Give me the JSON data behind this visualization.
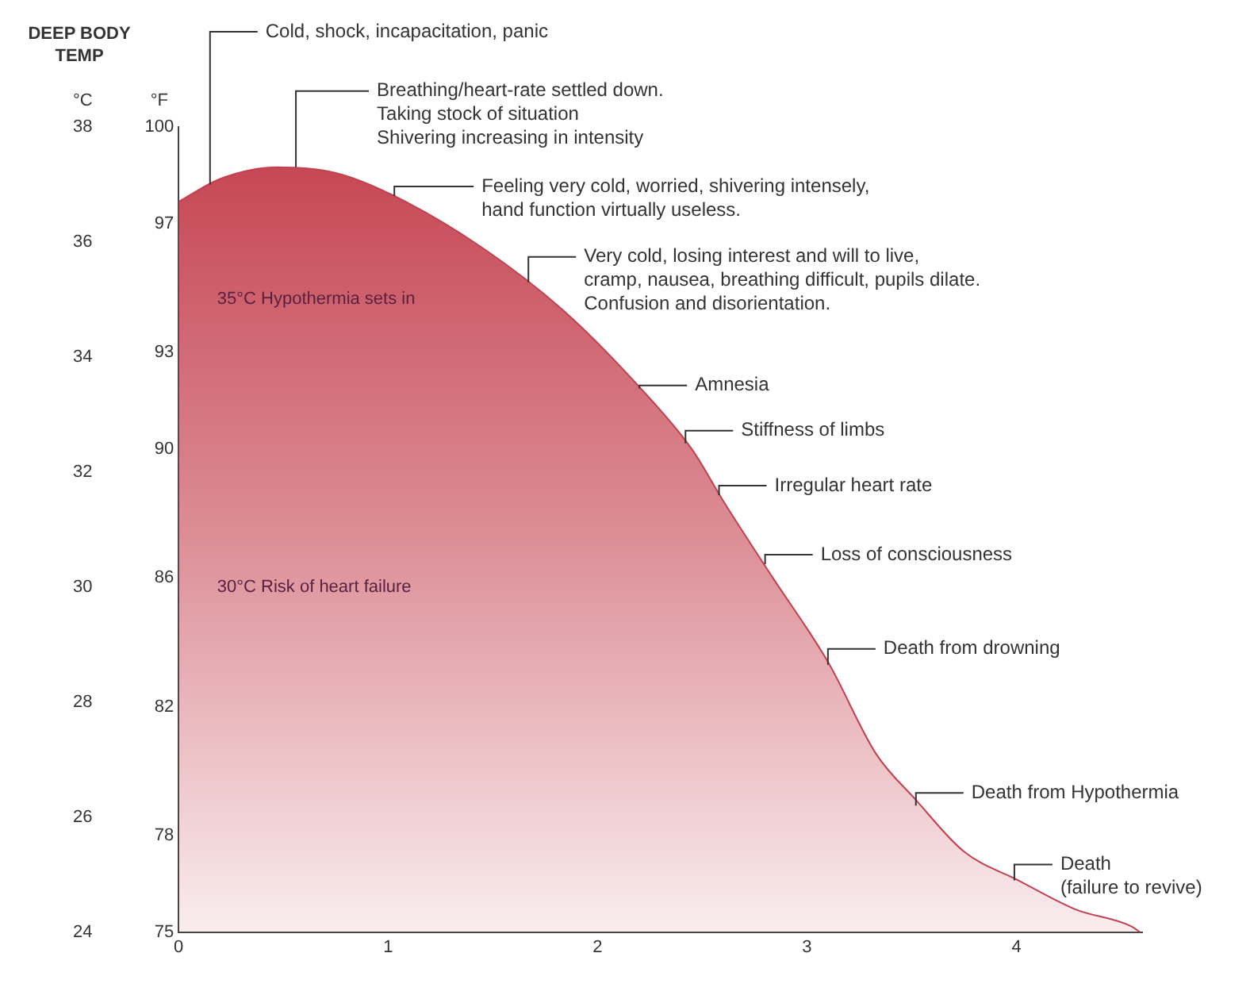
{
  "chart_data": {
    "type": "area",
    "title": "DEEP BODY\nTEMP",
    "ylabel": "°C",
    "y2label": "°F",
    "x": [
      0,
      0.2,
      0.47,
      0.75,
      1.03,
      1.45,
      1.84,
      2.22,
      2.45,
      2.6,
      2.83,
      3.1,
      3.33,
      3.52,
      3.75,
      4.01,
      4.28,
      4.55,
      4.59
    ],
    "series": [
      {
        "color": "#c4404e",
        "values": [
          36.7,
          37.1,
          37.3,
          37.2,
          36.8,
          35.9,
          34.8,
          33.4,
          32.4,
          31.5,
          30.2,
          28.7,
          27.1,
          26.3,
          25.4,
          24.9,
          24.4,
          24.1,
          24
        ]
      }
    ],
    "xlim": [
      0,
      4.6
    ],
    "xticks": [
      0,
      1,
      2,
      3,
      4
    ],
    "ylim": [
      24,
      38
    ],
    "yticks": [
      24,
      26,
      28,
      30,
      32,
      34,
      36,
      38
    ],
    "y2lim": [
      75,
      100
    ],
    "y2ticks": [
      75,
      78,
      82,
      86,
      90,
      93,
      97,
      100
    ],
    "grid": false,
    "legend": false,
    "annotations": [
      {
        "text": "Cold, shock, incapacitation, panic",
        "x": 0.15,
        "y": 37
      },
      {
        "text": "Breathing/heart-rate settled down.\nTaking stock of situation\nShivering increasing in intensity",
        "x": 0.56,
        "y": 37.3
      },
      {
        "text": "Feeling very cold, worried, shivering intensely,\nhand function virtually useless.",
        "x": 1.03,
        "y": 36.8
      },
      {
        "text": "Very cold, losing interest and will to live,\ncramp, nausea, breathing difficult, pupils dilate.\nConfusion and disorientation.",
        "x": 1.67,
        "y": 35.3
      },
      {
        "text": "Amnesia",
        "x": 2.2,
        "y": 33.45
      },
      {
        "text": "Stiffness of limbs",
        "x": 2.42,
        "y": 32.5
      },
      {
        "text": "Irregular heart rate",
        "x": 2.58,
        "y": 31.6
      },
      {
        "text": "Loss of consciousness",
        "x": 2.8,
        "y": 30.4
      },
      {
        "text": "Death from drowning",
        "x": 3.1,
        "y": 28.65
      },
      {
        "text": "Death from Hypothermia",
        "x": 3.52,
        "y": 26.2
      },
      {
        "text": "Death\n(failure to revive)",
        "x": 3.99,
        "y": 24.9
      },
      "35°C Hypothermia sets in",
      "30°C Risk of heart failure"
    ]
  }
}
